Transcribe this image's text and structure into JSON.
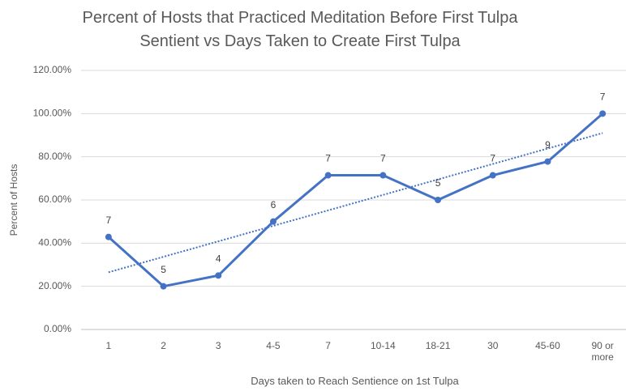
{
  "chart_data": {
    "type": "line",
    "title": "Percent of Hosts that Practiced Meditation Before First Tulpa Sentient vs Days Taken to Create First Tulpa",
    "x_label": "Days taken to Reach Sentience on 1st Tulpa",
    "y_label": "Percent of Hosts",
    "categories": [
      "1",
      "2",
      "3",
      "4-5",
      "7",
      "10-14",
      "18-21",
      "30",
      "45-60",
      "90 or more"
    ],
    "series": [
      {
        "name": "Percent of Hosts",
        "color": "#4472c4",
        "values": [
          42.86,
          20,
          25,
          50,
          71.43,
          71.43,
          60,
          71.43,
          77.78,
          100
        ]
      }
    ],
    "point_labels": [
      7,
      5,
      4,
      6,
      7,
      7,
      5,
      7,
      9,
      7
    ],
    "trendline": {
      "color": "#4472c4",
      "values": [
        26.5,
        91
      ]
    },
    "ylim": [
      0,
      120
    ],
    "yticks": [
      {
        "value": 0,
        "label": "0.00%"
      },
      {
        "value": 20,
        "label": "20.00%"
      },
      {
        "value": 40,
        "label": "40.00%"
      },
      {
        "value": 60,
        "label": "60.00%"
      },
      {
        "value": 80,
        "label": "80.00%"
      },
      {
        "value": 100,
        "label": "100.00%"
      },
      {
        "value": 120,
        "label": "120.00%"
      }
    ],
    "grid": true
  }
}
